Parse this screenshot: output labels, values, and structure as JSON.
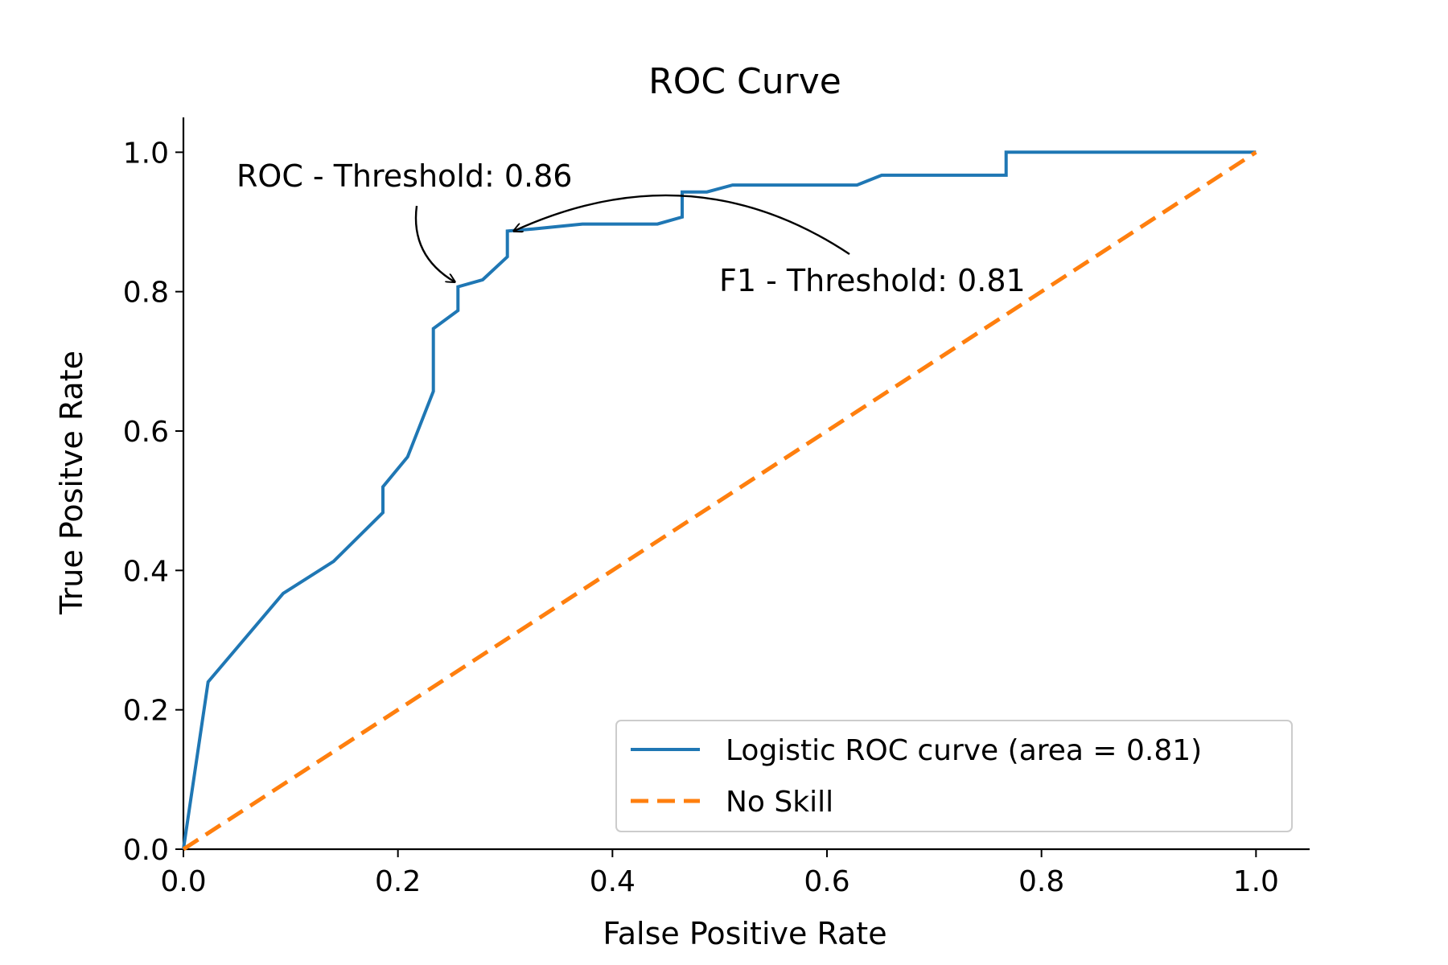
{
  "chart_data": {
    "type": "line",
    "title": "ROC Curve",
    "xlabel": "False Positive Rate",
    "ylabel": "True Positve Rate",
    "xlim": [
      0.0,
      1.05
    ],
    "ylim": [
      0.0,
      1.05
    ],
    "xticks": [
      "0.0",
      "0.2",
      "0.4",
      "0.6",
      "0.8",
      "1.0"
    ],
    "yticks": [
      "0.0",
      "0.2",
      "0.4",
      "0.6",
      "0.8",
      "1.0"
    ],
    "grid": false,
    "legend_position": "lower-right",
    "series": [
      {
        "name": "Logistic ROC curve (area = 0.81)",
        "color": "#1f77b4",
        "style": "solid",
        "x": [
          0.0,
          0.023,
          0.093,
          0.14,
          0.186,
          0.186,
          0.209,
          0.233,
          0.233,
          0.256,
          0.256,
          0.279,
          0.302,
          0.302,
          0.326,
          0.372,
          0.442,
          0.465,
          0.465,
          0.488,
          0.512,
          0.628,
          0.651,
          0.767,
          0.767,
          1.0
        ],
        "y": [
          0.0,
          0.24,
          0.367,
          0.413,
          0.483,
          0.52,
          0.563,
          0.657,
          0.747,
          0.773,
          0.807,
          0.817,
          0.85,
          0.887,
          0.89,
          0.897,
          0.897,
          0.907,
          0.943,
          0.943,
          0.953,
          0.953,
          0.967,
          0.967,
          1.0,
          1.0
        ]
      },
      {
        "name": "No Skill",
        "color": "#ff7f0e",
        "style": "dashed",
        "x": [
          0.0,
          1.0
        ],
        "y": [
          0.0,
          1.0
        ]
      }
    ],
    "annotations": [
      {
        "text": "ROC - Threshold: 0.86",
        "point": [
          0.256,
          0.807
        ]
      },
      {
        "text": "F1 - Threshold: 0.81",
        "point": [
          0.308,
          0.887
        ]
      }
    ]
  }
}
